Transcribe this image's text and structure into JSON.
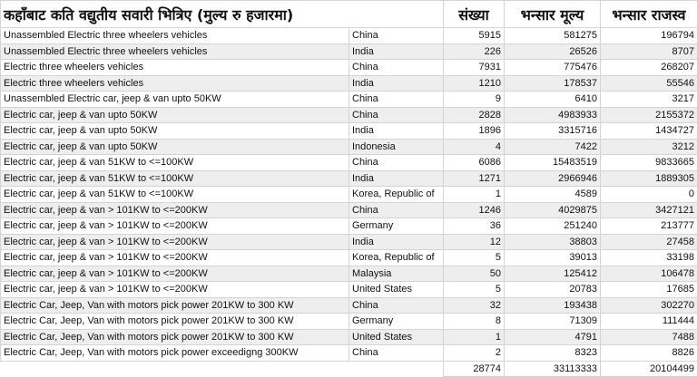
{
  "header": {
    "title": "कहाँबाट कति वद्युतीय सवारी भित्रिए (मुल्य रु हजारमा)",
    "col_quantity": "संख्या",
    "col_value": "भन्सार मूल्य",
    "col_revenue": "भन्सार राजस्व"
  },
  "rows": [
    {
      "item": "Unassembled Electric three wheelers vehicles",
      "country": "China",
      "qty": "5915",
      "value": "581275",
      "revenue": "196794"
    },
    {
      "item": "Unassembled Electric three wheelers vehicles",
      "country": "India",
      "qty": "226",
      "value": "26526",
      "revenue": "8707"
    },
    {
      "item": "Electric three wheelers vehicles",
      "country": "China",
      "qty": "7931",
      "value": "775476",
      "revenue": "268207"
    },
    {
      "item": "Electric three wheelers vehicles",
      "country": "India",
      "qty": "1210",
      "value": "178537",
      "revenue": "55546"
    },
    {
      "item": "Unassembled Electric car, jeep & van upto 50KW",
      "country": "China",
      "qty": "9",
      "value": "6410",
      "revenue": "3217"
    },
    {
      "item": "Electric car, jeep & van upto 50KW",
      "country": "China",
      "qty": "2828",
      "value": "4983933",
      "revenue": "2155372"
    },
    {
      "item": "Electric car, jeep & van upto 50KW",
      "country": "India",
      "qty": "1896",
      "value": "3315716",
      "revenue": "1434727"
    },
    {
      "item": "Electric car, jeep & van upto 50KW",
      "country": "Indonesia",
      "qty": "4",
      "value": "7422",
      "revenue": "3212"
    },
    {
      "item": "Electric car, jeep & van 51KW to <=100KW",
      "country": "China",
      "qty": "6086",
      "value": "15483519",
      "revenue": "9833665"
    },
    {
      "item": "Electric car, jeep & van 51KW to <=100KW",
      "country": "India",
      "qty": "1271",
      "value": "2966946",
      "revenue": "1889305"
    },
    {
      "item": "Electric car, jeep & van 51KW to <=100KW",
      "country": "Korea, Republic of",
      "qty": "1",
      "value": "4589",
      "revenue": "0"
    },
    {
      "item": "Electric car, jeep & van > 101KW to <=200KW",
      "country": "China",
      "qty": "1246",
      "value": "4029875",
      "revenue": "3427121"
    },
    {
      "item": "Electric car, jeep & van > 101KW to <=200KW",
      "country": "Germany",
      "qty": "36",
      "value": "251240",
      "revenue": "213777"
    },
    {
      "item": "Electric car, jeep & van > 101KW to <=200KW",
      "country": "India",
      "qty": "12",
      "value": "38803",
      "revenue": "27458"
    },
    {
      "item": "Electric car, jeep & van > 101KW to <=200KW",
      "country": "Korea, Republic of",
      "qty": "5",
      "value": "39013",
      "revenue": "33198"
    },
    {
      "item": "Electric car, jeep & van > 101KW to <=200KW",
      "country": "Malaysia",
      "qty": "50",
      "value": "125412",
      "revenue": "106478"
    },
    {
      "item": "Electric car, jeep & van > 101KW to <=200KW",
      "country": "United States",
      "qty": "5",
      "value": "20783",
      "revenue": "17685"
    },
    {
      "item": "Electric Car, Jeep, Van with motors pick power  201KW to 300 KW",
      "country": "China",
      "qty": "32",
      "value": "193438",
      "revenue": "302270"
    },
    {
      "item": "Electric Car, Jeep, Van with motors pick power  201KW to 300 KW",
      "country": "Germany",
      "qty": "8",
      "value": "71309",
      "revenue": "111444"
    },
    {
      "item": "Electric Car, Jeep, Van with motors pick power  201KW to 300 KW",
      "country": "United States",
      "qty": "1",
      "value": "4791",
      "revenue": "7488"
    },
    {
      "item": "Electric Car, Jeep, Van with motors pick power exceedigng 300KW",
      "country": "China",
      "qty": "2",
      "value": "8323",
      "revenue": "8826"
    }
  ],
  "totals": {
    "qty": "28774",
    "value": "33113333",
    "revenue": "20104499"
  }
}
